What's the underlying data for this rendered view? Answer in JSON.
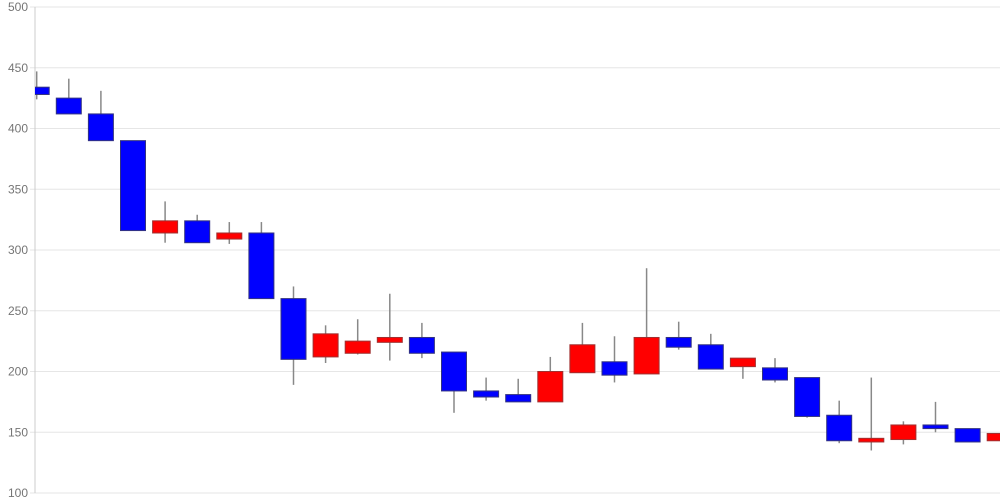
{
  "chart_data": {
    "type": "candlestick",
    "title": "",
    "xlabel": "",
    "ylabel": "",
    "legend": "none",
    "grid": "horizontal",
    "x_axis": {
      "labels_visible": false,
      "num_points": 31
    },
    "y_axis": {
      "min": 100,
      "max": 500,
      "tick_interval": 50,
      "ticks": [
        500,
        450,
        400,
        350,
        300,
        250,
        200,
        150,
        100
      ]
    },
    "candles": [
      {
        "open": 434,
        "high": 447,
        "low": 424,
        "close": 428
      },
      {
        "open": 425,
        "high": 441,
        "low": 412,
        "close": 412
      },
      {
        "open": 412,
        "high": 431,
        "low": 390,
        "close": 390
      },
      {
        "open": 390,
        "high": 390,
        "low": 316,
        "close": 316
      },
      {
        "open": 314,
        "high": 340,
        "low": 306,
        "close": 324
      },
      {
        "open": 324,
        "high": 329,
        "low": 306,
        "close": 306
      },
      {
        "open": 309,
        "high": 323,
        "low": 305,
        "close": 314
      },
      {
        "open": 314,
        "high": 323,
        "low": 260,
        "close": 260
      },
      {
        "open": 260,
        "high": 270,
        "low": 189,
        "close": 210
      },
      {
        "open": 212,
        "high": 238,
        "low": 207,
        "close": 231
      },
      {
        "open": 215,
        "high": 243,
        "low": 214,
        "close": 225
      },
      {
        "open": 224,
        "high": 264,
        "low": 209,
        "close": 228
      },
      {
        "open": 228,
        "high": 240,
        "low": 211,
        "close": 215
      },
      {
        "open": 216,
        "high": 216,
        "low": 166,
        "close": 184
      },
      {
        "open": 184,
        "high": 195,
        "low": 176,
        "close": 179
      },
      {
        "open": 181,
        "high": 194,
        "low": 175,
        "close": 175
      },
      {
        "open": 175,
        "high": 212,
        "low": 175,
        "close": 200
      },
      {
        "open": 199,
        "high": 240,
        "low": 199,
        "close": 222
      },
      {
        "open": 208,
        "high": 229,
        "low": 191,
        "close": 197
      },
      {
        "open": 198,
        "high": 285,
        "low": 198,
        "close": 228
      },
      {
        "open": 228,
        "high": 241,
        "low": 218,
        "close": 220
      },
      {
        "open": 222,
        "high": 231,
        "low": 202,
        "close": 202
      },
      {
        "open": 204,
        "high": 211,
        "low": 194,
        "close": 211
      },
      {
        "open": 203,
        "high": 211,
        "low": 191,
        "close": 193
      },
      {
        "open": 195,
        "high": 195,
        "low": 162,
        "close": 163
      },
      {
        "open": 164,
        "high": 176,
        "low": 141,
        "close": 143
      },
      {
        "open": 142,
        "high": 195,
        "low": 135,
        "close": 145
      },
      {
        "open": 144,
        "high": 159,
        "low": 140,
        "close": 156
      },
      {
        "open": 156,
        "high": 175,
        "low": 150,
        "close": 153
      },
      {
        "open": 153,
        "high": 153,
        "low": 142,
        "close": 142
      },
      {
        "open": 143,
        "high": 149,
        "low": 143,
        "close": 149
      }
    ],
    "colors": {
      "rising_fill": "#ff0000",
      "falling_fill": "#0000ff",
      "rising_border": "#a03030",
      "falling_border": "#333380",
      "wick": "#888888",
      "gridline": "#e6e6e6",
      "axis_line": "#cccccc",
      "tick_label": "#757575",
      "background": "#ffffff"
    }
  }
}
